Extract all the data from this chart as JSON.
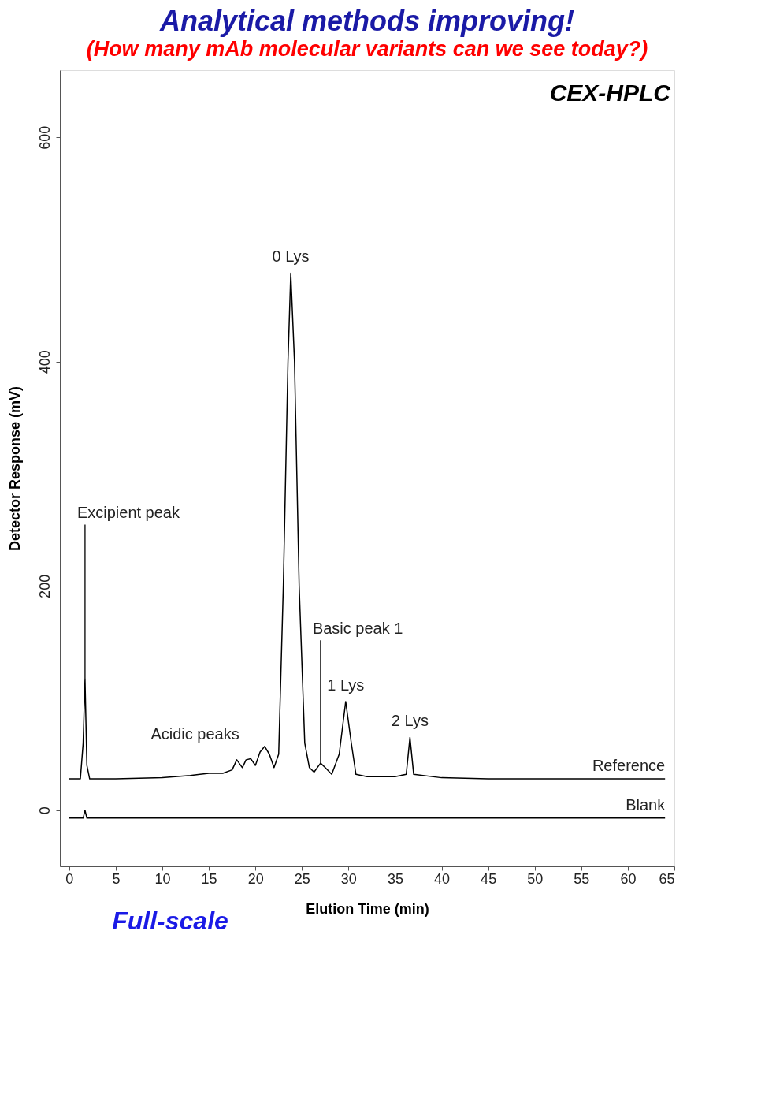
{
  "chart_data": {
    "type": "line",
    "title": "Analytical methods improving!",
    "subtitle": "(How many mAb molecular variants can we see today?)",
    "xlabel": "Elution Time (min)",
    "ylabel": "Detector Response (mV)",
    "xlim": [
      -1,
      65
    ],
    "xticks": [
      0,
      5,
      10,
      15,
      20,
      25,
      30,
      35,
      40,
      45,
      50,
      55,
      60,
      65
    ],
    "ylim": [
      -50,
      660
    ],
    "yticks": [
      0,
      200,
      400,
      600
    ],
    "grid": false,
    "legend": false,
    "marker": "none",
    "line_style": "solid",
    "series": [
      {
        "name": "Reference",
        "color": "#000000",
        "x": [
          0,
          1.2,
          1.5,
          1.7,
          1.9,
          2.2,
          5,
          10,
          13,
          15,
          16.5,
          17.5,
          18,
          18.6,
          19,
          19.5,
          20,
          20.5,
          21,
          21.5,
          22,
          22.5,
          23,
          23.5,
          23.8,
          24.2,
          24.7,
          25.3,
          25.8,
          26.3,
          27,
          27.5,
          28.2,
          29,
          29.7,
          30.3,
          30.8,
          32,
          35,
          36.2,
          36.6,
          37,
          40,
          45,
          50,
          55,
          64
        ],
        "values": [
          28,
          28,
          60,
          117,
          40,
          28,
          28,
          29,
          31,
          33,
          33,
          36,
          45,
          38,
          45,
          46,
          40,
          52,
          57,
          50,
          38,
          50,
          200,
          400,
          479,
          400,
          200,
          60,
          38,
          34,
          42,
          38,
          32,
          50,
          97,
          60,
          32,
          30,
          30,
          32,
          65,
          32,
          29,
          28,
          28,
          28,
          28
        ]
      },
      {
        "name": "Blank",
        "color": "#000000",
        "x": [
          0,
          1.5,
          1.7,
          1.9,
          64
        ],
        "values": [
          -7,
          -7,
          0,
          -7,
          -7
        ]
      }
    ],
    "annotations": [
      {
        "text": "0 Lys",
        "x": 23.8,
        "y": 479
      },
      {
        "text": "1 Lys",
        "x": 29.7,
        "y": 97
      },
      {
        "text": "2 Lys",
        "x": 36.6,
        "y": 65
      },
      {
        "text": "Excipient peak",
        "x": 1.7,
        "y": 117
      },
      {
        "text": "Basic peak 1",
        "x": 27,
        "y": 42
      },
      "CEX-HPLC",
      "Full-scale",
      "Acidic peaks"
    ]
  }
}
